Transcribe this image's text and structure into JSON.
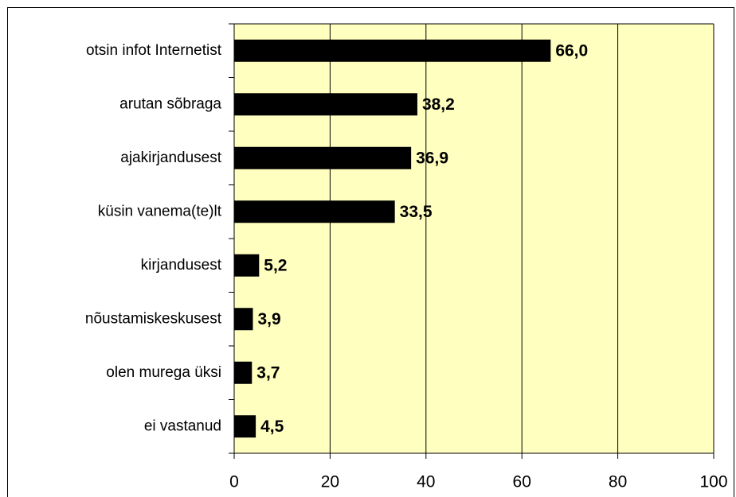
{
  "chart_data": {
    "type": "bar",
    "orientation": "horizontal",
    "categories": [
      "otsin infot Internetist",
      "arutan sõbraga",
      "ajakirjandusest",
      "küsin vanema(te)lt",
      "kirjandusest",
      "nõustamiskeskusest",
      "olen murega üksi",
      "ei vastanud"
    ],
    "values": [
      66.0,
      38.2,
      36.9,
      33.5,
      5.2,
      3.9,
      3.7,
      4.5
    ],
    "value_labels": [
      "66,0",
      "38,2",
      "36,9",
      "33,5",
      "5,2",
      "3,9",
      "3,7",
      "4,5"
    ],
    "color": "#000000",
    "plot_background": "#ffffc0",
    "xlim": [
      0,
      100
    ],
    "xticks": [
      0,
      20,
      40,
      60,
      80,
      100
    ],
    "grid": true
  }
}
